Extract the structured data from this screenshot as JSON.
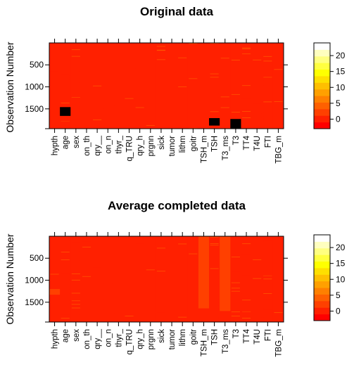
{
  "chart_data": [
    {
      "type": "heatmap",
      "title": "Original data",
      "xlabel": "",
      "ylabel": "Observation Number",
      "variables": [
        "hypth",
        "age",
        "sex",
        "on_th",
        "qry__",
        "on_n",
        "thyr_",
        "q_TRU",
        "qry_h",
        "prgnn",
        "sick",
        "tumor",
        "lithm",
        "goitr",
        "TSH_m",
        "TSH",
        "T3_ms",
        "T3",
        "TT4",
        "T4U",
        "FTI",
        "TBG_m"
      ],
      "y_ticks": [
        500,
        1000,
        1500
      ],
      "y_range": [
        1,
        1950
      ],
      "colorbar": {
        "ticks": [
          0,
          5,
          10,
          15,
          20
        ],
        "range": [
          -3,
          24
        ]
      },
      "base_value": 0,
      "missing_color": "#000000",
      "missing_blocks": [
        {
          "variable": "age",
          "obs_from": 1460,
          "obs_to": 1660
        },
        {
          "variable": "TSH",
          "obs_from": 1710,
          "obs_to": 1880
        },
        {
          "variable": "T3",
          "obs_from": 1730,
          "obs_to": 1950
        }
      ]
    },
    {
      "type": "heatmap",
      "title": "Average completed data",
      "xlabel": "",
      "ylabel": "Observation Number",
      "variables": [
        "hypth",
        "age",
        "sex",
        "on_th",
        "qry__",
        "on_n",
        "thyr_",
        "q_TRU",
        "qry_h",
        "prgnn",
        "sick",
        "tumor",
        "lithm",
        "goitr",
        "TSH_m",
        "TSH",
        "T3_ms",
        "T3",
        "TT4",
        "T4U",
        "FTI",
        "TBG_m"
      ],
      "y_ticks": [
        500,
        1000,
        1500
      ],
      "y_range": [
        1,
        1950
      ],
      "colorbar": {
        "ticks": [
          0,
          5,
          10,
          15,
          20
        ],
        "range": [
          -3,
          24
        ]
      },
      "base_value": 0,
      "elevated_blocks": [
        {
          "variable": "TSH_m",
          "obs_from": 1,
          "obs_to": 1640,
          "value": 2
        },
        {
          "variable": "T3_ms",
          "obs_from": 1,
          "obs_to": 1700,
          "value": 2
        },
        {
          "variable": "hypth",
          "obs_from": 1200,
          "obs_to": 1330,
          "value": 2
        }
      ]
    }
  ],
  "colors": {
    "palette": [
      "#ff0000",
      "#ff2000",
      "#ff4000",
      "#ff6000",
      "#ff8000",
      "#ffa000",
      "#ffbf00",
      "#ffdf00",
      "#ffff00",
      "#ffff40",
      "#ffff80",
      "#ffffbf",
      "#ffffff"
    ],
    "frame": "#000000",
    "missing": "#000000"
  }
}
